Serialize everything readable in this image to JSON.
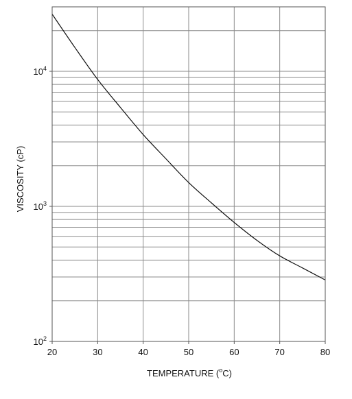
{
  "chart_data": {
    "type": "line",
    "title": "",
    "xlabel": "TEMPERATURE (°C)",
    "xlabel_parts": {
      "prefix": "TEMPERATURE (",
      "sup": "o",
      "suffix": "C)"
    },
    "ylabel": "VISCOSITY (cP)",
    "x_scale": "linear",
    "y_scale": "log",
    "xlim": [
      20,
      80
    ],
    "ylim": [
      100,
      30000
    ],
    "x_ticks": [
      20,
      30,
      40,
      50,
      60,
      70,
      80
    ],
    "x_tick_labels": [
      "20",
      "30",
      "40",
      "50",
      "60",
      "70",
      "80"
    ],
    "y_major_ticks": [
      {
        "value": 100,
        "base": "10",
        "exp": "2"
      },
      {
        "value": 1000,
        "base": "10",
        "exp": "3"
      },
      {
        "value": 10000,
        "base": "10",
        "exp": "4"
      }
    ],
    "y_minor_gridlines": [
      200,
      300,
      400,
      500,
      600,
      700,
      800,
      900,
      2000,
      3000,
      4000,
      5000,
      6000,
      7000,
      8000,
      9000,
      20000
    ],
    "grid": true,
    "legend": "none",
    "line_color": "#111111",
    "grid_color": "#8a8a8a",
    "series": [
      {
        "x": [
          20,
          25,
          30,
          35,
          40,
          45,
          50,
          55,
          60,
          65,
          70,
          75,
          80
        ],
        "values": [
          26500,
          15000,
          8700,
          5400,
          3400,
          2250,
          1500,
          1060,
          760,
          560,
          430,
          350,
          285
        ]
      }
    ]
  }
}
